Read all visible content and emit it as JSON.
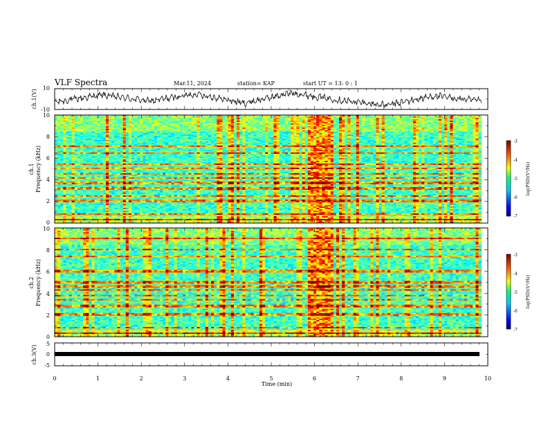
{
  "header": {
    "title": "VLF Spectra",
    "date": "Mar.11, 2024",
    "station": "station= KAP",
    "start": "start  UT  =   13: 0  : 1"
  },
  "chart_data": [
    {
      "type": "line",
      "panel": "ch1-waveform",
      "ylabel": "ch.1(V)",
      "ylim": [
        -10,
        10
      ],
      "yticks": [
        "10",
        "-10"
      ],
      "xlim": [
        0,
        10
      ],
      "line_color": "#000000",
      "y_approx": [
        -3,
        4,
        -2,
        5,
        -4,
        6,
        -1,
        -6,
        3,
        -2
      ]
    },
    {
      "type": "heatmap",
      "panel": "ch1-spectrogram",
      "ylabel": "ch.1\nFrequency (kHz)",
      "ylim": [
        0,
        10
      ],
      "yticks": [
        "0",
        "2",
        "4",
        "6",
        "8",
        "10"
      ],
      "xlim": [
        0,
        10
      ],
      "colorbar": {
        "label": "log(PSD)(V²/Hz)",
        "range": [
          -7,
          -3
        ],
        "ticks": [
          "-3",
          "-4",
          "-5",
          "-6",
          "-7"
        ]
      },
      "event_interval_min": [
        5.85,
        6.45
      ],
      "persistent_lines_khz": [
        0.3,
        0.8,
        1.95,
        2.15,
        2.5,
        3.2,
        3.7,
        4.15,
        4.55,
        5.1,
        5.45,
        6.5,
        7.15
      ]
    },
    {
      "type": "heatmap",
      "panel": "ch2-spectrogram",
      "ylabel": "ch.2\nFrequency (kHz)",
      "ylim": [
        0,
        10
      ],
      "yticks": [
        "0",
        "2",
        "4",
        "6",
        "8",
        "10"
      ],
      "xlim": [
        0,
        10
      ],
      "colorbar": {
        "label": "log(PSD)(V²/Hz)",
        "range": [
          -7,
          -3
        ],
        "ticks": [
          "-3",
          "-4",
          "-5",
          "-6",
          "-7"
        ]
      },
      "event_interval_min": [
        5.85,
        6.45
      ],
      "persistent_lines_khz": [
        0.3,
        0.8,
        1.95,
        2.15,
        2.8,
        3.4,
        3.8,
        4.3,
        4.6,
        5.0,
        6.0,
        7.35,
        8.0,
        9.05
      ]
    },
    {
      "type": "line",
      "panel": "ch3-waveform",
      "ylabel": "ch.3(V)",
      "ylim": [
        -5,
        5
      ],
      "yticks": [
        "5",
        "0",
        "-5"
      ],
      "xlim": [
        0,
        10
      ],
      "xlabel": "Time (min)",
      "xticks": [
        "0",
        "1",
        "2",
        "3",
        "4",
        "5",
        "6",
        "7",
        "8",
        "9",
        "10"
      ],
      "constant_value": 0
    }
  ]
}
